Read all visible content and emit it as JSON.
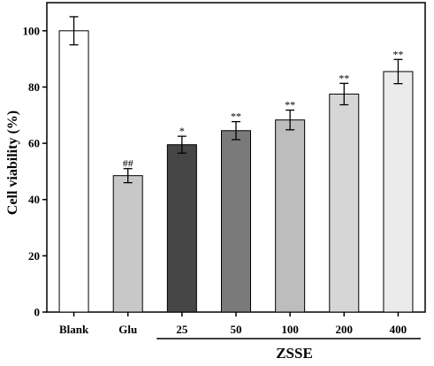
{
  "chart_data": {
    "type": "bar",
    "title": "",
    "xlabel": "",
    "ylabel": "Cell viability (%)",
    "ylim": [
      0,
      100
    ],
    "yticks": [
      0,
      20,
      40,
      60,
      80,
      100
    ],
    "categories": [
      "Blank",
      "Glu",
      "25",
      "50",
      "100",
      "200",
      "400"
    ],
    "values": [
      100,
      48.5,
      59.5,
      64.5,
      68.3,
      77.5,
      85.5
    ],
    "errors": [
      5.0,
      2.5,
      3.0,
      3.2,
      3.5,
      3.8,
      4.3
    ],
    "significance": [
      "",
      "##",
      "*",
      "**",
      "**",
      "**",
      "**"
    ],
    "bar_colors": [
      "#ffffff",
      "#c8c8c8",
      "#464646",
      "#7a7a7a",
      "#bdbdbd",
      "#d6d6d6",
      "#ebebeb"
    ],
    "group_label": "ZSSE",
    "group_categories": [
      "25",
      "50",
      "100",
      "200",
      "400"
    ],
    "grid": false,
    "legend": "none"
  }
}
